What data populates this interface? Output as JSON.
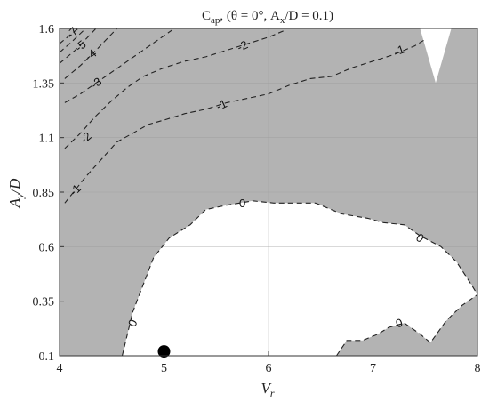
{
  "chart_data": {
    "type": "contour",
    "title": "C_ap, (θ = 0°, A_x/D = 0.1)",
    "title_parts": {
      "main": "C",
      "main_sub": "ap",
      "rest": ", (θ = 0°, A",
      "rest_sub": "x",
      "tail": "/D = 0.1)"
    },
    "xlabel": "V_r",
    "xlabel_parts": {
      "main": "V",
      "sub": "r"
    },
    "ylabel": "A_y/D",
    "ylabel_parts": {
      "main": "A",
      "sub": "y",
      "tail": "/D"
    },
    "xlim": [
      4,
      8
    ],
    "ylim": [
      0.1,
      1.6
    ],
    "xticks": [
      4,
      5,
      6,
      7,
      8
    ],
    "yticks": [
      0.1,
      0.35,
      0.6,
      0.85,
      1.1,
      1.35,
      1.6
    ],
    "xtick_labels": [
      "4",
      "5",
      "6",
      "7",
      "8"
    ],
    "ytick_labels": [
      "0.1",
      "0.35",
      "0.6",
      "0.85",
      "1.1",
      "1.35",
      "1.6"
    ],
    "grid": true,
    "colors": {
      "negative_fill": "#b3b3b3",
      "positive_fill": "#ffffff",
      "contour_line": "#222222",
      "marker": "#000000"
    },
    "zero_contour_outline": [
      [
        4.6,
        0.1
      ],
      [
        4.7,
        0.3
      ],
      [
        4.9,
        0.55
      ],
      [
        5.05,
        0.64
      ],
      [
        5.25,
        0.7
      ],
      [
        5.4,
        0.77
      ],
      [
        5.6,
        0.79
      ],
      [
        5.85,
        0.81
      ],
      [
        6.05,
        0.8
      ],
      [
        6.25,
        0.8
      ],
      [
        6.45,
        0.8
      ],
      [
        6.7,
        0.75
      ],
      [
        6.95,
        0.73
      ],
      [
        7.1,
        0.71
      ],
      [
        7.3,
        0.7
      ],
      [
        7.45,
        0.65
      ],
      [
        7.65,
        0.6
      ],
      [
        7.8,
        0.53
      ],
      [
        7.95,
        0.42
      ],
      [
        8.0,
        0.38
      ],
      [
        7.85,
        0.33
      ],
      [
        7.7,
        0.26
      ],
      [
        7.55,
        0.16
      ],
      [
        7.45,
        0.2
      ],
      [
        7.3,
        0.25
      ],
      [
        7.15,
        0.23
      ],
      [
        7.05,
        0.2
      ],
      [
        6.9,
        0.17
      ],
      [
        6.75,
        0.17
      ],
      [
        6.65,
        0.1
      ]
    ],
    "top_right_positive_region": [
      [
        7.45,
        1.6
      ],
      [
        7.75,
        1.6
      ],
      [
        7.6,
        1.35
      ]
    ],
    "contours": [
      {
        "level": "0",
        "points": [
          [
            4.6,
            0.1
          ],
          [
            4.7,
            0.3
          ],
          [
            4.9,
            0.55
          ],
          [
            5.05,
            0.64
          ],
          [
            5.25,
            0.7
          ],
          [
            5.4,
            0.77
          ],
          [
            5.6,
            0.79
          ],
          [
            5.85,
            0.81
          ],
          [
            6.05,
            0.8
          ],
          [
            6.25,
            0.8
          ],
          [
            6.45,
            0.8
          ],
          [
            6.7,
            0.75
          ],
          [
            6.95,
            0.73
          ],
          [
            7.1,
            0.71
          ],
          [
            7.3,
            0.7
          ],
          [
            7.45,
            0.65
          ],
          [
            7.65,
            0.6
          ],
          [
            7.8,
            0.53
          ],
          [
            7.95,
            0.42
          ],
          [
            8.0,
            0.38
          ]
        ]
      },
      {
        "level": "0",
        "points": [
          [
            6.65,
            0.1
          ],
          [
            6.75,
            0.17
          ],
          [
            6.9,
            0.17
          ],
          [
            7.05,
            0.2
          ],
          [
            7.15,
            0.23
          ],
          [
            7.3,
            0.25
          ],
          [
            7.45,
            0.2
          ],
          [
            7.55,
            0.16
          ],
          [
            7.7,
            0.26
          ],
          [
            7.85,
            0.33
          ],
          [
            8.0,
            0.38
          ]
        ]
      },
      {
        "level": "-1",
        "points": [
          [
            4.05,
            0.8
          ],
          [
            4.25,
            0.92
          ],
          [
            4.4,
            1.0
          ],
          [
            4.55,
            1.08
          ],
          [
            4.7,
            1.12
          ],
          [
            4.85,
            1.16
          ],
          [
            5.0,
            1.18
          ],
          [
            5.2,
            1.21
          ],
          [
            5.4,
            1.23
          ],
          [
            5.6,
            1.26
          ],
          [
            5.8,
            1.28
          ],
          [
            6.0,
            1.3
          ],
          [
            6.2,
            1.34
          ],
          [
            6.4,
            1.37
          ],
          [
            6.6,
            1.38
          ],
          [
            6.8,
            1.42
          ],
          [
            7.0,
            1.45
          ],
          [
            7.2,
            1.48
          ],
          [
            7.4,
            1.52
          ],
          [
            7.5,
            1.55
          ]
        ]
      },
      {
        "level": "-2",
        "points": [
          [
            4.05,
            1.05
          ],
          [
            4.2,
            1.12
          ],
          [
            4.35,
            1.2
          ],
          [
            4.5,
            1.27
          ],
          [
            4.65,
            1.33
          ],
          [
            4.8,
            1.38
          ],
          [
            5.0,
            1.42
          ],
          [
            5.2,
            1.45
          ],
          [
            5.4,
            1.47
          ],
          [
            5.6,
            1.5
          ],
          [
            5.8,
            1.53
          ],
          [
            6.0,
            1.56
          ],
          [
            6.15,
            1.59
          ]
        ]
      },
      {
        "level": "-3",
        "points": [
          [
            4.05,
            1.26
          ],
          [
            4.2,
            1.3
          ],
          [
            4.35,
            1.35
          ],
          [
            4.5,
            1.4
          ],
          [
            4.65,
            1.45
          ],
          [
            4.8,
            1.5
          ],
          [
            4.95,
            1.55
          ],
          [
            5.1,
            1.6
          ]
        ]
      },
      {
        "level": "-4",
        "points": [
          [
            4.05,
            1.37
          ],
          [
            4.2,
            1.43
          ],
          [
            4.35,
            1.5
          ],
          [
            4.55,
            1.6
          ]
        ]
      },
      {
        "level": "-5",
        "points": [
          [
            4.0,
            1.44
          ],
          [
            4.15,
            1.5
          ],
          [
            4.35,
            1.6
          ]
        ]
      },
      {
        "level": "-6",
        "points": [
          [
            4.0,
            1.49
          ],
          [
            4.12,
            1.54
          ],
          [
            4.25,
            1.6
          ]
        ]
      },
      {
        "level": "-7",
        "points": [
          [
            4.0,
            1.53
          ],
          [
            4.1,
            1.57
          ],
          [
            4.18,
            1.6
          ]
        ]
      }
    ],
    "contour_labels": [
      {
        "text": "0",
        "x": 5.75,
        "y": 0.8,
        "angle": 0
      },
      {
        "text": "0",
        "x": 7.45,
        "y": 0.64,
        "angle": 35
      },
      {
        "text": "0",
        "x": 4.7,
        "y": 0.25,
        "angle": -65
      },
      {
        "text": "0",
        "x": 7.25,
        "y": 0.25,
        "angle": -20
      },
      {
        "text": "-1",
        "x": 4.15,
        "y": 0.86,
        "angle": -45
      },
      {
        "text": "-1",
        "x": 5.55,
        "y": 1.25,
        "angle": -25
      },
      {
        "text": "-1",
        "x": 7.25,
        "y": 1.5,
        "angle": -20
      },
      {
        "text": "-2",
        "x": 4.25,
        "y": 1.1,
        "angle": -40
      },
      {
        "text": "-2",
        "x": 5.75,
        "y": 1.52,
        "angle": -25
      },
      {
        "text": "-3",
        "x": 4.35,
        "y": 1.35,
        "angle": -35
      },
      {
        "text": "-4",
        "x": 4.3,
        "y": 1.48,
        "angle": -35
      },
      {
        "text": "-5",
        "x": 4.2,
        "y": 1.52,
        "angle": -40
      },
      {
        "text": "-7",
        "x": 4.12,
        "y": 1.58,
        "angle": -45
      }
    ],
    "marker": {
      "x": 5.0,
      "y": 0.12
    }
  }
}
